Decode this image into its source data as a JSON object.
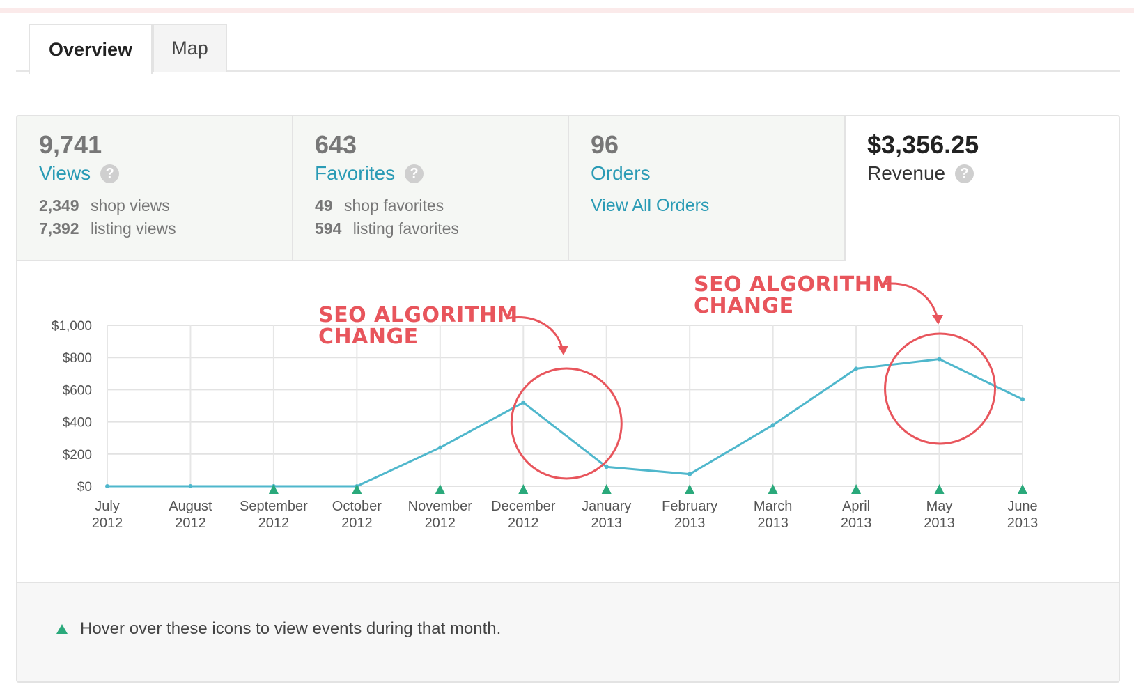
{
  "tabs": [
    {
      "label": "Overview",
      "active": true
    },
    {
      "label": "Map",
      "active": false
    }
  ],
  "stats": {
    "views": {
      "value": "9,741",
      "label": "Views",
      "sub": [
        {
          "num": "2,349",
          "text": "shop views"
        },
        {
          "num": "7,392",
          "text": "listing views"
        }
      ]
    },
    "favorites": {
      "value": "643",
      "label": "Favorites",
      "sub": [
        {
          "num": "49",
          "text": "shop favorites"
        },
        {
          "num": "594",
          "text": "listing favorites"
        }
      ]
    },
    "orders": {
      "value": "96",
      "label": "Orders",
      "link": "View All Orders"
    },
    "revenue": {
      "value": "$3,356.25",
      "label": "Revenue"
    },
    "help_glyph": "?"
  },
  "chart_data": {
    "type": "line",
    "x": [
      "July 2012",
      "August 2012",
      "September 2012",
      "October 2012",
      "November 2012",
      "December 2012",
      "January 2013",
      "February 2013",
      "March 2013",
      "April 2013",
      "May 2013",
      "June 2013"
    ],
    "x_ticks": [
      [
        "July",
        "2012"
      ],
      [
        "August",
        "2012"
      ],
      [
        "September",
        "2012"
      ],
      [
        "October",
        "2012"
      ],
      [
        "November",
        "2012"
      ],
      [
        "December",
        "2012"
      ],
      [
        "January",
        "2013"
      ],
      [
        "February",
        "2013"
      ],
      [
        "March",
        "2013"
      ],
      [
        "April",
        "2013"
      ],
      [
        "May",
        "2013"
      ],
      [
        "June",
        "2013"
      ]
    ],
    "values": [
      0,
      0,
      0,
      0,
      240,
      520,
      120,
      75,
      380,
      730,
      790,
      540
    ],
    "event_markers": [
      false,
      false,
      true,
      true,
      true,
      true,
      true,
      true,
      true,
      true,
      true,
      true
    ],
    "ylim": [
      0,
      1000
    ],
    "y_ticks": [
      0,
      200,
      400,
      600,
      800,
      1000
    ],
    "y_tick_labels": [
      "$0",
      "$200",
      "$400",
      "$600",
      "$800",
      "$1,000"
    ],
    "grid": true,
    "line_color": "#4fb7cc",
    "marker_color": "#2aa97b",
    "annotations": [
      {
        "lines": [
          "SEO ALGORITHM",
          "CHANGE"
        ],
        "circled_month": "December 2012"
      },
      {
        "lines": [
          "SEO ALGORITHM",
          "CHANGE"
        ],
        "circled_month": "May 2013"
      }
    ],
    "annotation_color": "#e8555c"
  },
  "footer": {
    "note": "Hover over these icons to view events during that month."
  }
}
